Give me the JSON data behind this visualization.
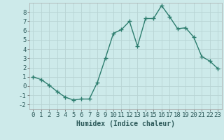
{
  "x": [
    0,
    1,
    2,
    3,
    4,
    5,
    6,
    7,
    8,
    9,
    10,
    11,
    12,
    13,
    14,
    15,
    16,
    17,
    18,
    19,
    20,
    21,
    22,
    23
  ],
  "y": [
    1.0,
    0.7,
    0.1,
    -0.6,
    -1.2,
    -1.5,
    -1.4,
    -1.4,
    0.4,
    3.0,
    5.7,
    6.1,
    7.0,
    4.3,
    7.3,
    7.3,
    8.7,
    7.5,
    6.2,
    6.3,
    5.3,
    3.2,
    2.7,
    1.9
  ],
  "line_color": "#2d7d6e",
  "marker": "+",
  "bg_color": "#cdeaea",
  "grid_color": "#b8d4d4",
  "xlabel": "Humidex (Indice chaleur)",
  "xlim": [
    -0.5,
    23.5
  ],
  "ylim": [
    -2.5,
    9.0
  ],
  "yticks": [
    -2,
    -1,
    0,
    1,
    2,
    3,
    4,
    5,
    6,
    7,
    8
  ],
  "xticks": [
    0,
    1,
    2,
    3,
    4,
    5,
    6,
    7,
    8,
    9,
    10,
    11,
    12,
    13,
    14,
    15,
    16,
    17,
    18,
    19,
    20,
    21,
    22,
    23
  ],
  "xlabel_fontsize": 7,
  "tick_fontsize": 6.5,
  "line_width": 1.0,
  "marker_size": 4
}
